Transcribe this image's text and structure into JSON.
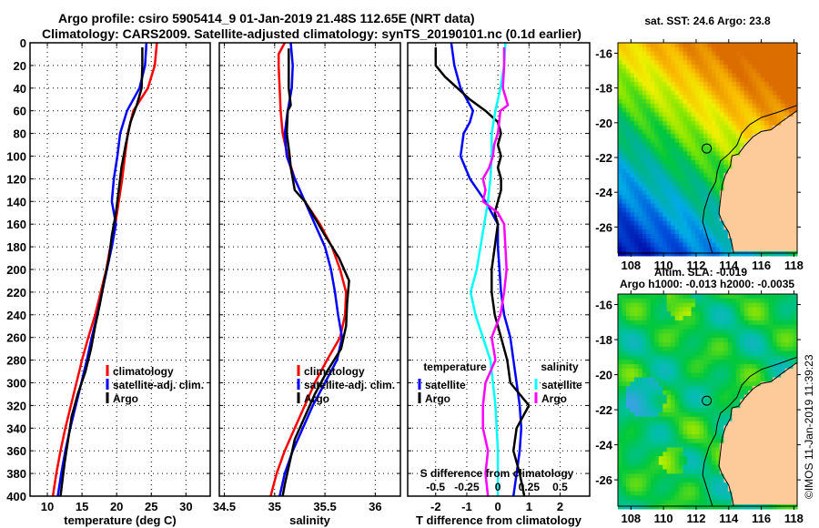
{
  "header": {
    "title_line1": "Argo profile: csiro 5905414_9 01-Jan-2019 21.48S 112.65E (NRT data)",
    "title_line2": "Climatology: CARS2009. Satellite-adjusted climatology: synTS_20190101.nc (0.1d earlier)"
  },
  "colors": {
    "climatology": "#ff0000",
    "satellite": "#0000ff",
    "argo": "#000000",
    "sal_satellite": "#00ffff",
    "sal_argo": "#ff00ff",
    "land": "#fdcb99"
  },
  "chart_data": [
    {
      "type": "line",
      "name": "temperature-profile",
      "xlabel": "temperature (deg C)",
      "ylabel": "",
      "xlim": [
        7.5,
        33.5
      ],
      "ylim": [
        400,
        0
      ],
      "xticks": [
        10,
        15,
        20,
        25,
        30
      ],
      "yticks": [
        0,
        20,
        40,
        60,
        80,
        100,
        120,
        140,
        160,
        180,
        200,
        220,
        240,
        260,
        280,
        300,
        320,
        340,
        360,
        380,
        400
      ],
      "grid": true,
      "legend": {
        "placement": "lower-middle",
        "entries": [
          "climatology",
          "satellite-adj. clim.",
          "Argo"
        ]
      },
      "series": [
        {
          "name": "climatology",
          "color": "#ff0000",
          "depth": [
            0,
            20,
            40,
            60,
            80,
            100,
            120,
            140,
            160,
            180,
            200,
            220,
            240,
            260,
            280,
            300,
            320,
            340,
            360,
            380,
            400
          ],
          "values": [
            25.8,
            25.5,
            24.5,
            22.4,
            21.6,
            21.2,
            20.8,
            20.3,
            19.8,
            19.1,
            18.5,
            17.7,
            16.9,
            15.9,
            15.0,
            14.2,
            13.4,
            12.6,
            11.9,
            11.3,
            10.8
          ]
        },
        {
          "name": "satellite-adj. clim.",
          "color": "#0000ff",
          "depth": [
            0,
            20,
            40,
            60,
            80,
            100,
            120,
            140,
            160,
            180,
            200,
            220,
            240,
            260,
            280,
            300,
            320,
            340,
            360,
            380,
            400
          ],
          "values": [
            24.3,
            24.1,
            23.3,
            21.5,
            20.5,
            20.1,
            19.6,
            19.3,
            19.9,
            19.3,
            18.6,
            17.9,
            17.2,
            16.4,
            15.7,
            14.9,
            14.1,
            13.3,
            12.6,
            12.0,
            11.5
          ]
        },
        {
          "name": "Argo",
          "color": "#000000",
          "depth": [
            4,
            20,
            40,
            55,
            70,
            90,
            110,
            130,
            150,
            170,
            190,
            210,
            230,
            250,
            270,
            290,
            310,
            330,
            350,
            370,
            390,
            400
          ],
          "values": [
            23.7,
            23.7,
            23.6,
            22.9,
            22.0,
            21.3,
            20.7,
            20.3,
            19.9,
            19.3,
            18.9,
            18.2,
            17.6,
            16.9,
            16.3,
            15.5,
            14.4,
            13.5,
            13.0,
            12.5,
            12.1,
            11.9
          ]
        }
      ]
    },
    {
      "type": "line",
      "name": "salinity-profile",
      "xlabel": "salinity",
      "xlim": [
        34.45,
        36.25
      ],
      "ylim": [
        400,
        0
      ],
      "xticks": [
        34.5,
        35,
        35.5,
        36
      ],
      "grid": true,
      "legend": {
        "placement": "lower-middle",
        "entries": [
          "climatology",
          "satellite-adj. clim.",
          "Argo"
        ]
      },
      "series": [
        {
          "name": "climatology",
          "color": "#ff0000",
          "depth": [
            0,
            10,
            20,
            40,
            60,
            80,
            100,
            120,
            140,
            160,
            180,
            200,
            220,
            240,
            260,
            280,
            300,
            320,
            340,
            360,
            380,
            400
          ],
          "values": [
            35.1,
            35.04,
            35.04,
            35.05,
            35.06,
            35.08,
            35.13,
            35.2,
            35.3,
            35.45,
            35.57,
            35.65,
            35.71,
            35.7,
            35.65,
            35.52,
            35.4,
            35.3,
            35.2,
            35.1,
            35.02,
            34.96
          ]
        },
        {
          "name": "satellite-adj. clim.",
          "color": "#0000ff",
          "depth": [
            0,
            20,
            40,
            60,
            80,
            100,
            120,
            140,
            160,
            180,
            200,
            220,
            240,
            260,
            280,
            300,
            320,
            340,
            360,
            380,
            400
          ],
          "values": [
            35.16,
            35.18,
            35.17,
            35.13,
            35.1,
            35.12,
            35.2,
            35.3,
            35.4,
            35.5,
            35.56,
            35.6,
            35.63,
            35.67,
            35.62,
            35.5,
            35.38,
            35.28,
            35.18,
            35.1,
            35.05
          ]
        },
        {
          "name": "Argo",
          "color": "#000000",
          "depth": [
            5,
            20,
            40,
            55,
            60,
            80,
            100,
            110,
            130,
            140,
            150,
            170,
            190,
            210,
            230,
            250,
            270,
            290,
            310,
            330,
            350,
            370,
            390,
            400
          ],
          "values": [
            35.14,
            35.14,
            35.14,
            35.16,
            35.13,
            35.12,
            35.15,
            35.16,
            35.2,
            35.3,
            35.37,
            35.5,
            35.64,
            35.74,
            35.72,
            35.71,
            35.66,
            35.52,
            35.4,
            35.3,
            35.2,
            35.15,
            35.1,
            35.08
          ]
        }
      ]
    },
    {
      "type": "line",
      "name": "difference-profile",
      "xlabel": "T difference from climatology",
      "xlabel2": "S difference from climatology",
      "xlim": [
        -2.9,
        2.95
      ],
      "xlim2": [
        -0.725,
        0.7375
      ],
      "ylim": [
        400,
        0
      ],
      "xticks": [
        -2,
        -1,
        0,
        1,
        2
      ],
      "xticks2": [
        -0.5,
        -0.25,
        0,
        0.25,
        0.5
      ],
      "xticks2_labels": [
        "-0.5",
        "-0.25",
        "0",
        "0.25",
        "0.5"
      ],
      "grid": true,
      "legend": {
        "placement": "lower",
        "temperature_title": "temperature",
        "salinity_title": "salinity",
        "entries": [
          "satellite",
          "Argo",
          "satellite",
          "Argo"
        ]
      },
      "series": [
        {
          "name": "temperature satellite",
          "axis": "T",
          "color": "#0000ff",
          "depth": [
            0,
            20,
            40,
            60,
            70,
            80,
            100,
            120,
            140,
            160,
            180,
            200,
            220,
            240,
            260,
            280,
            300,
            320,
            340,
            360,
            380,
            400
          ],
          "values": [
            -1.5,
            -1.4,
            -1.2,
            -0.8,
            -0.9,
            -1.1,
            -1.2,
            -0.9,
            -0.4,
            0.0,
            0.0,
            0.05,
            0.1,
            0.2,
            0.4,
            0.5,
            0.6,
            0.7,
            0.75,
            0.7,
            0.6,
            0.5
          ]
        },
        {
          "name": "temperature Argo",
          "axis": "T",
          "color": "#000000",
          "depth": [
            4,
            20,
            30,
            40,
            50,
            60,
            70,
            80,
            90,
            100,
            110,
            120,
            130,
            140,
            150,
            160,
            180,
            200,
            220,
            240,
            260,
            280,
            300,
            320,
            340,
            360,
            380,
            400
          ],
          "values": [
            -2.0,
            -2.0,
            -1.7,
            -1.3,
            -0.9,
            -0.4,
            0.0,
            0.1,
            0.0,
            0.1,
            0.0,
            0.1,
            0.1,
            0.0,
            -0.1,
            0.0,
            -0.1,
            -0.2,
            -0.2,
            -0.1,
            0.1,
            0.3,
            0.4,
            1.0,
            0.6,
            0.5,
            0.7,
            0.85
          ]
        },
        {
          "name": "salinity satellite",
          "axis": "S",
          "color": "#00ffff",
          "depth": [
            0,
            20,
            40,
            60,
            80,
            100,
            120,
            140,
            160,
            180,
            200,
            220,
            240,
            260,
            280,
            300,
            320,
            340,
            360,
            380,
            400
          ],
          "values": [
            0.06,
            0.05,
            0.02,
            -0.02,
            -0.05,
            -0.05,
            -0.06,
            -0.08,
            -0.11,
            -0.14,
            -0.17,
            -0.22,
            -0.18,
            -0.12,
            -0.06,
            -0.04,
            -0.02,
            -0.01,
            0.0,
            0.0,
            0.0
          ]
        },
        {
          "name": "salinity Argo",
          "axis": "S",
          "color": "#ff00ff",
          "depth": [
            4,
            20,
            40,
            55,
            60,
            80,
            90,
            100,
            110,
            120,
            130,
            140,
            150,
            160,
            180,
            200,
            220,
            240,
            260,
            280,
            300,
            320,
            340,
            360,
            380,
            400
          ],
          "values": [
            0.05,
            0.05,
            0.04,
            0.08,
            0.02,
            0.0,
            -0.03,
            -0.04,
            -0.07,
            -0.12,
            -0.1,
            -0.12,
            0.0,
            0.05,
            0.06,
            0.07,
            0.05,
            0.02,
            -0.05,
            -0.02,
            -0.1,
            -0.12,
            -0.12,
            -0.08,
            -0.1,
            -0.08
          ]
        }
      ]
    },
    {
      "type": "heatmap",
      "name": "sst-map",
      "title": "sat. SST: 24.6 Argo: 23.8",
      "xlim": [
        107.2,
        118.2
      ],
      "ylim": [
        -27.5,
        -15.4
      ],
      "xticks": [
        108,
        110,
        112,
        114,
        116,
        118
      ],
      "yticks": [
        -16,
        -18,
        -20,
        -22,
        -24,
        -26
      ],
      "marker": {
        "lon": 112.65,
        "lat": -21.48
      }
    },
    {
      "type": "heatmap",
      "name": "sla-map",
      "title": "Altim. SLA: -0.019",
      "subtitle": "Argo h1000: -0.013 h2000: -0.0035",
      "xlim": [
        107.2,
        118.2
      ],
      "ylim": [
        -27.5,
        -15.4
      ],
      "xticks": [
        108,
        110,
        112,
        114,
        116,
        118
      ],
      "yticks": [
        -16,
        -18,
        -20,
        -22,
        -24,
        -26
      ],
      "marker": {
        "lon": 112.65,
        "lat": -21.48
      }
    }
  ],
  "stamp": "©IMOS 11-Jan-2019 11:39:23"
}
